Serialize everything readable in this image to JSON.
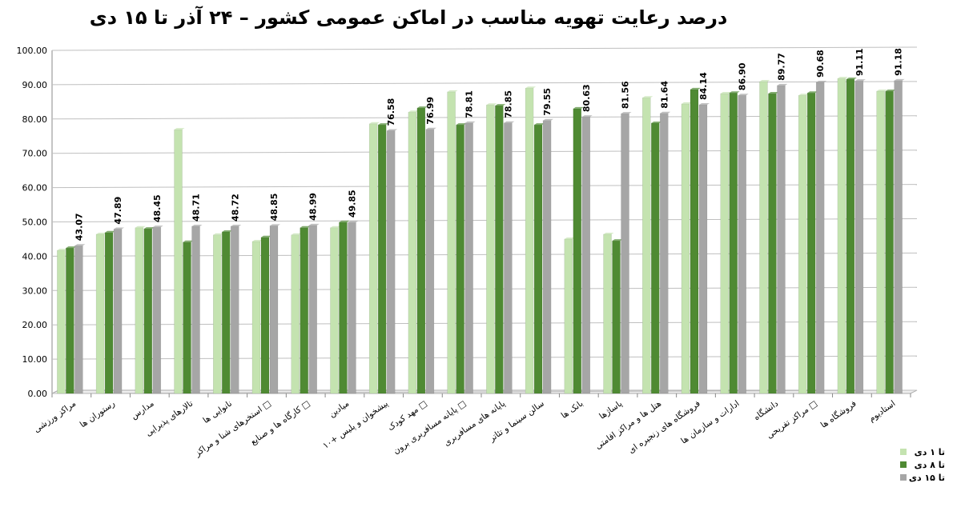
{
  "chart_data": {
    "type": "bar",
    "title": "درصد رعایت تهویه مناسب در اماکن عمومی کشور  – ۲۴ آذر تا ۱۵ دی",
    "categories": [
      "مراکز ورزشی",
      "رستوران ها",
      "مدارس",
      "تالارهای پذیرایی",
      "نانوایی ها",
      "استخرهای شنا و مراکز □",
      "کارگاه ها و صنایع □",
      "میادین",
      "پیشخوان و پلیس +۱۰",
      "مهد کودک □",
      "پایانه مسافربری برون □",
      "پایانه های مسافربری",
      "سالن سینما و تئاتر",
      "بانک ها",
      "پاساژها",
      "هتل ها و مراکز اقامتی",
      "فروشگاه های زنجیره ای",
      "ادارات و سازمان ها",
      "دانشگاه",
      "مراکز تفریحی □",
      "فروشگاه ها",
      "استادیوم"
    ],
    "series": [
      {
        "name": "تا ۱ دی",
        "color": "#c4e3b0",
        "values": [
          41.7,
          46.4,
          48.3,
          76.9,
          46.2,
          44.3,
          46.2,
          48.3,
          78.6,
          82.0,
          87.9,
          84.1,
          89.0,
          45.0,
          46.4,
          86.2,
          84.4,
          87.4,
          90.9,
          86.9,
          91.8,
          88.1
        ]
      },
      {
        "name": "تا ۸ دی",
        "color": "#4f8a33",
        "values": [
          42.4,
          46.9,
          48.0,
          44.1,
          47.1,
          45.5,
          48.3,
          49.9,
          78.3,
          83.2,
          78.3,
          83.9,
          78.3,
          83.0,
          44.5,
          78.8,
          88.6,
          87.6,
          87.4,
          87.6,
          91.6,
          88.1
        ]
      },
      {
        "name": "تا ۱۵ دی",
        "color": "#a6a6a6",
        "values": [
          43.07,
          47.89,
          48.45,
          48.71,
          48.72,
          48.85,
          48.99,
          49.85,
          76.58,
          76.99,
          78.81,
          78.85,
          79.55,
          80.63,
          81.56,
          81.64,
          84.14,
          86.9,
          89.77,
          90.68,
          91.11,
          91.18
        ],
        "value_labels": [
          "43.07",
          "47.89",
          "48.45",
          "48.71",
          "48.72",
          "48.85",
          "48.99",
          "49.85",
          "76.58",
          "76.99",
          "78.81",
          "78.85",
          "79.55",
          "80.63",
          "81.56",
          "81.64",
          "84.14",
          "86.90",
          "89.77",
          "90.68",
          "91.11",
          "91.18"
        ]
      }
    ],
    "ylim": [
      0,
      100
    ],
    "yticks": [
      {
        "value": 0,
        "label": "0.00"
      },
      {
        "value": 10,
        "label": "10.00"
      },
      {
        "value": 20,
        "label": "20.00"
      },
      {
        "value": 30,
        "label": "30.00"
      },
      {
        "value": 40,
        "label": "40.00"
      },
      {
        "value": 50,
        "label": "50.00"
      },
      {
        "value": 60,
        "label": "60.00"
      },
      {
        "value": 70,
        "label": "70.00"
      },
      {
        "value": 80,
        "label": "80.00"
      },
      {
        "value": 90,
        "label": "90.00"
      },
      {
        "value": 100,
        "label": "100.00"
      }
    ],
    "grid": true,
    "legend": "bottom-right"
  }
}
